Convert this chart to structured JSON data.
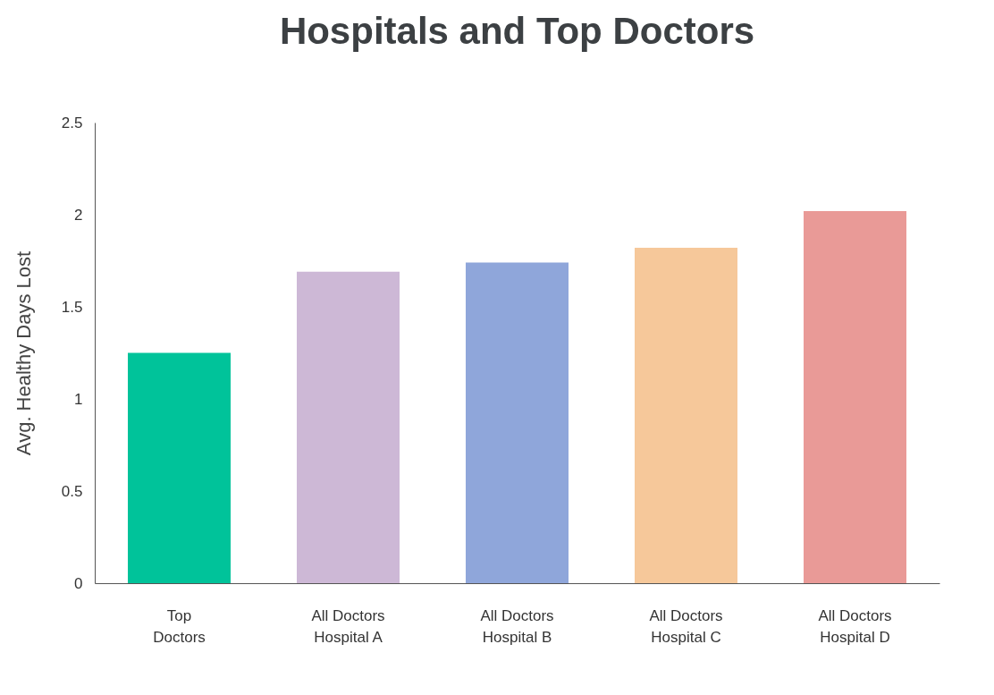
{
  "chart_data": {
    "type": "bar",
    "title": "Hospitals and Top Doctors",
    "ylabel": "Avg. Healthy Days Lost",
    "categories": [
      "Top\nDoctors",
      "All Doctors\nHospital A",
      "All Doctors\nHospital B",
      "All Doctors\nHospital C",
      "All Doctors\nHospital D"
    ],
    "values": [
      1.25,
      1.69,
      1.74,
      1.82,
      2.02
    ],
    "colors": [
      "#00c39a",
      "#cdb8d6",
      "#8fa6da",
      "#f6c89a",
      "#e99a97"
    ],
    "ylim": [
      0,
      2.5
    ],
    "yticks": [
      0,
      0.5,
      1,
      1.5,
      2,
      2.5
    ],
    "grid": false
  }
}
